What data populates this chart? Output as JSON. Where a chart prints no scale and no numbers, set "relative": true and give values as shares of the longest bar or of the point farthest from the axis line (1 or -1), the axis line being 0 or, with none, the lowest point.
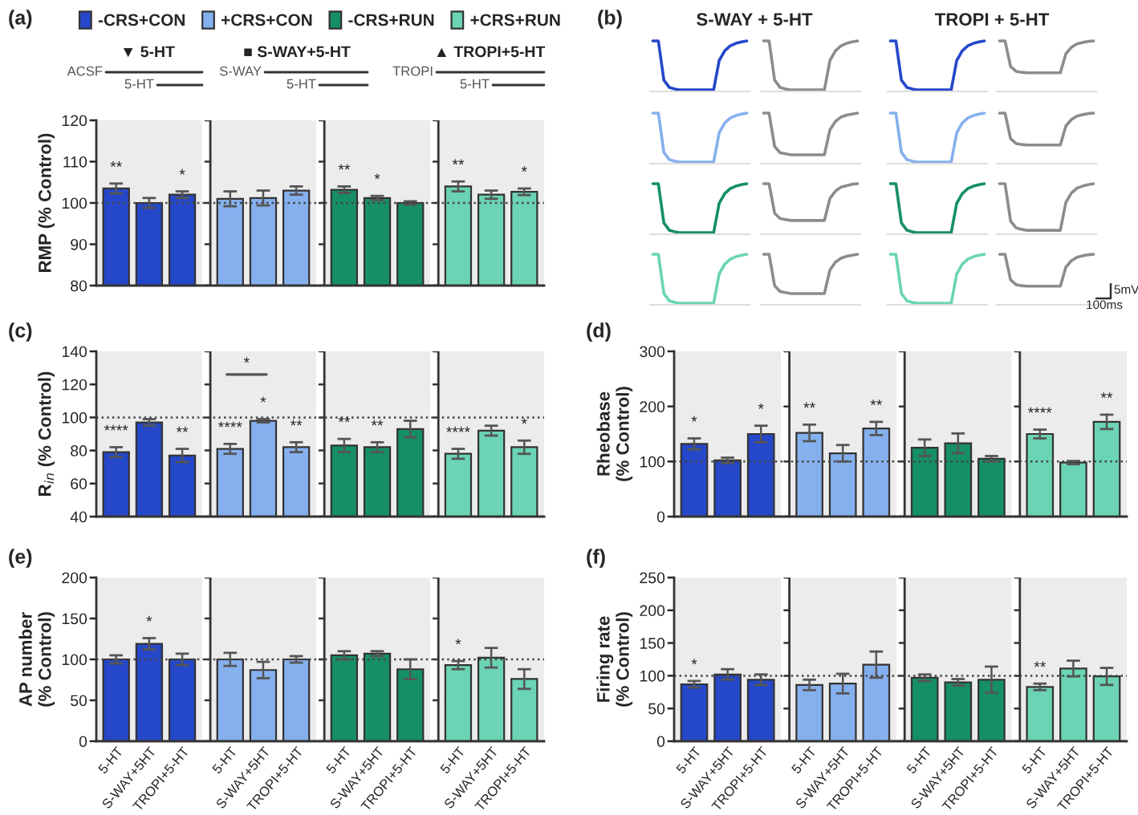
{
  "chart_data": [
    {
      "type": "bar",
      "title": "(a)",
      "ylabel": "RMP (% Control)",
      "categories": [
        null,
        null,
        null,
        null,
        null,
        null,
        null,
        null,
        null,
        null,
        null,
        null
      ],
      "legend": "top",
      "tick_labels": "y",
      "ylim": [
        80,
        120
      ],
      "yticks": [
        80,
        90,
        100,
        110,
        120
      ],
      "ref_lines": [
        {
          "axis": "y",
          "value": 100,
          "line_style": "dotted",
          "color": "#444444"
        }
      ],
      "annotations": [
        "▼ 5-HT",
        "■ S-WAY+5-HT",
        "▲ TROPI+5-HT",
        "ACSF",
        "5-HT",
        "S-WAY",
        "5-HT",
        "TROPI",
        "5-HT"
      ],
      "series": [
        {
          "name": "-CRS+CON",
          "color": "#2547c9",
          "values": [
            103.5,
            100,
            102,
            null,
            null,
            null,
            null,
            null,
            null,
            null,
            null,
            null
          ],
          "errors": [
            1.2,
            1.2,
            0.8,
            null,
            null,
            null,
            null,
            null,
            null,
            null,
            null,
            null
          ],
          "value_labels": [
            "**",
            null,
            "*",
            null,
            null,
            null,
            null,
            null,
            null,
            null,
            null,
            null
          ]
        },
        {
          "name": "+CRS+CON",
          "color": "#85b0ee",
          "values": [
            null,
            null,
            null,
            101,
            101.2,
            103,
            null,
            null,
            null,
            null,
            null,
            null
          ],
          "errors": [
            null,
            null,
            null,
            1.8,
            1.8,
            1,
            null,
            null,
            null,
            null,
            null,
            null
          ]
        },
        {
          "name": "-CRS+RUN",
          "color": "#158f68",
          "values": [
            null,
            null,
            null,
            null,
            null,
            null,
            103.2,
            101.2,
            100,
            null,
            null,
            null
          ],
          "errors": [
            null,
            null,
            null,
            null,
            null,
            null,
            0.8,
            0.5,
            0.4,
            null,
            null,
            null
          ],
          "value_labels": [
            null,
            null,
            null,
            null,
            null,
            null,
            "**",
            "*",
            null,
            null,
            null,
            null
          ]
        },
        {
          "name": "+CRS+RUN",
          "color": "#6ad4b4",
          "values": [
            null,
            null,
            null,
            null,
            null,
            null,
            null,
            null,
            null,
            104,
            102,
            102.7
          ],
          "errors": [
            null,
            null,
            null,
            null,
            null,
            null,
            null,
            null,
            null,
            1.2,
            1,
            0.8
          ],
          "value_labels": [
            null,
            null,
            null,
            null,
            null,
            null,
            null,
            null,
            null,
            "**",
            null,
            "*"
          ]
        }
      ]
    },
    {
      "type": "other",
      "title": "(b)",
      "annotations": [
        "S-WAY + 5-HT",
        "TROPI + 5-HT",
        "5mV",
        "100ms"
      ]
    },
    {
      "type": "line",
      "relative": true,
      "categories": [
        null,
        null,
        null,
        null,
        null,
        null,
        null,
        null,
        null,
        null,
        null,
        null,
        null,
        null,
        null,
        null,
        null,
        null
      ],
      "series": [
        {
          "color": "#2547c9",
          "values": [
            1,
            1,
            0.2,
            0.05,
            0.02,
            0,
            0,
            0,
            0,
            0,
            0,
            0,
            0.6,
            0.8,
            0.9,
            0.95,
            0.98,
            1
          ]
        }
      ]
    },
    {
      "type": "line",
      "relative": true,
      "categories": [
        null,
        null,
        null,
        null,
        null,
        null,
        null,
        null,
        null,
        null,
        null,
        null,
        null,
        null,
        null,
        null,
        null,
        null
      ],
      "series": [
        {
          "color": "#8c8c8c",
          "values": [
            1,
            1,
            0.2,
            0.05,
            0.02,
            0,
            0,
            0,
            0,
            0,
            0,
            0,
            0.6,
            0.8,
            0.9,
            0.95,
            0.98,
            1
          ]
        }
      ]
    },
    {
      "type": "line",
      "relative": true,
      "categories": [
        null,
        null,
        null,
        null,
        null,
        null,
        null,
        null,
        null,
        null,
        null,
        null,
        null,
        null,
        null,
        null,
        null,
        null
      ],
      "series": [
        {
          "color": "#2547c9",
          "values": [
            1,
            1,
            0.2,
            0.05,
            0.02,
            0,
            0,
            0,
            0,
            0,
            0,
            0,
            0.6,
            0.8,
            0.9,
            0.95,
            0.98,
            1
          ]
        }
      ]
    },
    {
      "type": "line",
      "relative": true,
      "categories": [
        null,
        null,
        null,
        null,
        null,
        null,
        null,
        null,
        null,
        null,
        null,
        null,
        null,
        null,
        null,
        null,
        null,
        null
      ],
      "series": [
        {
          "color": "#8c8c8c",
          "values": [
            1,
            1,
            0.48,
            0.38,
            0.36,
            0.35,
            0.35,
            0.35,
            0.35,
            0.35,
            0.35,
            0.35,
            0.74,
            0.87,
            0.94,
            0.97,
            0.99,
            1
          ]
        }
      ]
    },
    {
      "type": "line",
      "relative": true,
      "categories": [
        null,
        null,
        null,
        null,
        null,
        null,
        null,
        null,
        null,
        null,
        null,
        null,
        null,
        null,
        null,
        null,
        null,
        null
      ],
      "series": [
        {
          "color": "#85b0ee",
          "values": [
            1,
            1,
            0.2,
            0.05,
            0.02,
            0,
            0,
            0,
            0,
            0,
            0,
            0,
            0.6,
            0.8,
            0.9,
            0.95,
            0.98,
            1
          ]
        }
      ]
    },
    {
      "type": "line",
      "relative": true,
      "categories": [
        null,
        null,
        null,
        null,
        null,
        null,
        null,
        null,
        null,
        null,
        null,
        null,
        null,
        null,
        null,
        null,
        null,
        null
      ],
      "series": [
        {
          "color": "#8c8c8c",
          "values": [
            1,
            1,
            0.32,
            0.19,
            0.17,
            0.15,
            0.15,
            0.15,
            0.15,
            0.15,
            0.15,
            0.15,
            0.66,
            0.83,
            0.92,
            0.96,
            0.98,
            1
          ]
        }
      ]
    },
    {
      "type": "line",
      "relative": true,
      "categories": [
        null,
        null,
        null,
        null,
        null,
        null,
        null,
        null,
        null,
        null,
        null,
        null,
        null,
        null,
        null,
        null,
        null,
        null
      ],
      "series": [
        {
          "color": "#85b0ee",
          "values": [
            1,
            1,
            0.2,
            0.05,
            0.02,
            0,
            0,
            0,
            0,
            0,
            0,
            0,
            0.6,
            0.8,
            0.9,
            0.95,
            0.98,
            1
          ]
        }
      ]
    },
    {
      "type": "line",
      "relative": true,
      "categories": [
        null,
        null,
        null,
        null,
        null,
        null,
        null,
        null,
        null,
        null,
        null,
        null,
        null,
        null,
        null,
        null,
        null,
        null
      ],
      "series": [
        {
          "color": "#8c8c8c",
          "values": [
            1,
            1,
            0.48,
            0.38,
            0.36,
            0.35,
            0.35,
            0.35,
            0.35,
            0.35,
            0.35,
            0.35,
            0.74,
            0.87,
            0.94,
            0.97,
            0.99,
            1
          ]
        }
      ]
    },
    {
      "type": "line",
      "relative": true,
      "categories": [
        null,
        null,
        null,
        null,
        null,
        null,
        null,
        null,
        null,
        null,
        null,
        null,
        null,
        null,
        null,
        null,
        null,
        null
      ],
      "series": [
        {
          "color": "#158f68",
          "values": [
            1,
            1,
            0.2,
            0.05,
            0.02,
            0,
            0,
            0,
            0,
            0,
            0,
            0,
            0.6,
            0.8,
            0.9,
            0.95,
            0.98,
            1
          ]
        }
      ]
    },
    {
      "type": "line",
      "relative": true,
      "categories": [
        null,
        null,
        null,
        null,
        null,
        null,
        null,
        null,
        null,
        null,
        null,
        null,
        null,
        null,
        null,
        null,
        null,
        null
      ],
      "series": [
        {
          "color": "#8c8c8c",
          "values": [
            1,
            1,
            0.4,
            0.29,
            0.27,
            0.25,
            0.25,
            0.25,
            0.25,
            0.25,
            0.25,
            0.25,
            0.7,
            0.85,
            0.93,
            0.96,
            0.99,
            1
          ]
        }
      ]
    },
    {
      "type": "line",
      "relative": true,
      "categories": [
        null,
        null,
        null,
        null,
        null,
        null,
        null,
        null,
        null,
        null,
        null,
        null,
        null,
        null,
        null,
        null,
        null,
        null
      ],
      "series": [
        {
          "color": "#158f68",
          "values": [
            1,
            1,
            0.2,
            0.05,
            0.02,
            0,
            0,
            0,
            0,
            0,
            0,
            0,
            0.6,
            0.8,
            0.9,
            0.95,
            0.98,
            1
          ]
        }
      ]
    },
    {
      "type": "line",
      "relative": true,
      "categories": [
        null,
        null,
        null,
        null,
        null,
        null,
        null,
        null,
        null,
        null,
        null,
        null,
        null,
        null,
        null,
        null,
        null,
        null
      ],
      "series": [
        {
          "color": "#8c8c8c",
          "values": [
            1,
            1,
            0.24,
            0.1,
            0.07,
            0.05,
            0.05,
            0.05,
            0.05,
            0.05,
            0.05,
            0.05,
            0.62,
            0.81,
            0.91,
            0.95,
            0.98,
            1
          ]
        }
      ]
    },
    {
      "type": "line",
      "relative": true,
      "categories": [
        null,
        null,
        null,
        null,
        null,
        null,
        null,
        null,
        null,
        null,
        null,
        null,
        null,
        null,
        null,
        null,
        null,
        null
      ],
      "series": [
        {
          "color": "#6ad4b4",
          "values": [
            1,
            1,
            0.2,
            0.05,
            0.02,
            0,
            0,
            0,
            0,
            0,
            0,
            0,
            0.6,
            0.8,
            0.9,
            0.95,
            0.98,
            1
          ]
        }
      ]
    },
    {
      "type": "line",
      "relative": true,
      "categories": [
        null,
        null,
        null,
        null,
        null,
        null,
        null,
        null,
        null,
        null,
        null,
        null,
        null,
        null,
        null,
        null,
        null,
        null
      ],
      "series": [
        {
          "color": "#8c8c8c",
          "values": [
            1,
            1,
            0.36,
            0.24,
            0.22,
            0.2,
            0.2,
            0.2,
            0.2,
            0.2,
            0.2,
            0.2,
            0.68,
            0.84,
            0.92,
            0.96,
            0.98,
            1
          ]
        }
      ]
    },
    {
      "type": "line",
      "relative": true,
      "categories": [
        null,
        null,
        null,
        null,
        null,
        null,
        null,
        null,
        null,
        null,
        null,
        null,
        null,
        null,
        null,
        null,
        null,
        null
      ],
      "series": [
        {
          "color": "#6ad4b4",
          "values": [
            1,
            1,
            0.2,
            0.05,
            0.02,
            0,
            0,
            0,
            0,
            0,
            0,
            0,
            0.6,
            0.8,
            0.9,
            0.95,
            0.98,
            1
          ]
        }
      ]
    },
    {
      "type": "line",
      "relative": true,
      "categories": [
        null,
        null,
        null,
        null,
        null,
        null,
        null,
        null,
        null,
        null,
        null,
        null,
        null,
        null,
        null,
        null,
        null,
        null
      ],
      "series": [
        {
          "color": "#8c8c8c",
          "values": [
            1,
            1,
            0.48,
            0.38,
            0.36,
            0.35,
            0.35,
            0.35,
            0.35,
            0.35,
            0.35,
            0.35,
            0.74,
            0.87,
            0.94,
            0.97,
            0.99,
            1
          ]
        }
      ]
    },
    {
      "type": "bar",
      "title": "(c)",
      "ylabel": "R$_{in}$ (% Control)",
      "categories": [
        null,
        null,
        null,
        null,
        null,
        null,
        null,
        null,
        null,
        null,
        null,
        null
      ],
      "tick_labels": "y",
      "ylim": [
        40,
        140
      ],
      "yticks": [
        40,
        60,
        80,
        100,
        120,
        140
      ],
      "ref_lines": [
        {
          "axis": "y",
          "value": 100,
          "line_style": "dotted",
          "color": "#444444"
        }
      ],
      "annotations": [
        "*"
      ],
      "series": [
        {
          "colors": [
            "#2547c9",
            "#2547c9",
            "#2547c9",
            "#85b0ee",
            "#85b0ee",
            "#85b0ee",
            "#158f68",
            "#158f68",
            "#158f68",
            "#6ad4b4",
            "#6ad4b4",
            "#6ad4b4"
          ],
          "values": [
            79,
            97,
            77,
            81,
            98,
            82,
            83,
            82,
            93,
            78,
            92,
            82
          ],
          "errors": [
            3,
            2,
            4,
            3,
            1,
            3,
            4,
            3,
            5,
            3,
            3,
            4
          ],
          "value_labels": [
            "****",
            null,
            "**",
            "****",
            "*",
            "**",
            "**",
            "**",
            null,
            "****",
            null,
            "*"
          ]
        }
      ]
    },
    {
      "type": "bar",
      "title": "(d)",
      "ylabel": "Rheobase\n(% Control)",
      "categories": [
        null,
        null,
        null,
        null,
        null,
        null,
        null,
        null,
        null,
        null,
        null,
        null
      ],
      "tick_labels": "y",
      "ylim": [
        0,
        300
      ],
      "yticks": [
        0,
        100,
        200,
        300
      ],
      "ref_lines": [
        {
          "axis": "y",
          "value": 100,
          "line_style": "dotted",
          "color": "#444444"
        }
      ],
      "series": [
        {
          "colors": [
            "#2547c9",
            "#2547c9",
            "#2547c9",
            "#85b0ee",
            "#85b0ee",
            "#85b0ee",
            "#158f68",
            "#158f68",
            "#158f68",
            "#6ad4b4",
            "#6ad4b4",
            "#6ad4b4"
          ],
          "values": [
            132,
            102,
            150,
            152,
            115,
            160,
            125,
            133,
            105,
            150,
            98,
            172
          ],
          "errors": [
            10,
            5,
            15,
            15,
            15,
            12,
            15,
            18,
            5,
            8,
            3,
            13
          ],
          "value_labels": [
            "*",
            null,
            "*",
            "**",
            null,
            "**",
            null,
            null,
            null,
            "****",
            null,
            "**"
          ]
        }
      ]
    },
    {
      "type": "bar",
      "title": "(e)",
      "ylabel": "AP number\n(% Control)",
      "categories": [
        "5-HT",
        "S-WAY+5HT",
        "TROPI+5-HT",
        "5-HT",
        "S-WAY+5HT",
        "TROPI+5-HT",
        "5-HT",
        "S-WAY+5HT",
        "TROPI+5-HT",
        "5-HT",
        "S-WAY+5HT",
        "TROPI+5-HT"
      ],
      "ylim": [
        0,
        200
      ],
      "yticks": [
        0,
        50,
        100,
        150,
        200
      ],
      "ref_lines": [
        {
          "axis": "y",
          "value": 100,
          "line_style": "dotted",
          "color": "#444444"
        }
      ],
      "series": [
        {
          "colors": [
            "#2547c9",
            "#2547c9",
            "#2547c9",
            "#85b0ee",
            "#85b0ee",
            "#85b0ee",
            "#158f68",
            "#158f68",
            "#158f68",
            "#6ad4b4",
            "#6ad4b4",
            "#6ad4b4"
          ],
          "values": [
            100,
            119,
            100,
            100,
            87,
            100,
            105,
            107,
            88,
            93,
            102,
            76
          ],
          "errors": [
            5,
            7,
            7,
            8,
            10,
            4,
            5,
            3,
            12,
            5,
            12,
            12
          ],
          "value_labels": [
            null,
            "*",
            null,
            null,
            null,
            null,
            null,
            null,
            null,
            "*",
            null,
            null
          ]
        }
      ]
    },
    {
      "type": "bar",
      "title": "(f)",
      "ylabel": "Firing rate\n(% Control)",
      "categories": [
        "5-HT",
        "S-WAY+5HT",
        "TROPI+5-HT",
        "5-HT",
        "S-WAY+5HT",
        "TROPI+5-HT",
        "5-HT",
        "S-WAY+5HT",
        "TROPI+5-HT",
        "5-HT",
        "S-WAY+5HT",
        "TROPI+5-HT"
      ],
      "ylim": [
        0,
        250
      ],
      "yticks": [
        0,
        50,
        100,
        150,
        200,
        250
      ],
      "ref_lines": [
        {
          "axis": "y",
          "value": 100,
          "line_style": "dotted",
          "color": "#444444"
        }
      ],
      "series": [
        {
          "colors": [
            "#2547c9",
            "#2547c9",
            "#2547c9",
            "#85b0ee",
            "#85b0ee",
            "#85b0ee",
            "#158f68",
            "#158f68",
            "#158f68",
            "#6ad4b4",
            "#6ad4b4",
            "#6ad4b4"
          ],
          "values": [
            87,
            102,
            94,
            86,
            88,
            117,
            97,
            90,
            94,
            83,
            111,
            99
          ],
          "errors": [
            5,
            8,
            8,
            8,
            15,
            20,
            5,
            5,
            20,
            5,
            12,
            13
          ],
          "value_labels": [
            "*",
            null,
            null,
            null,
            null,
            null,
            null,
            null,
            null,
            "**",
            null,
            null
          ]
        }
      ]
    }
  ]
}
